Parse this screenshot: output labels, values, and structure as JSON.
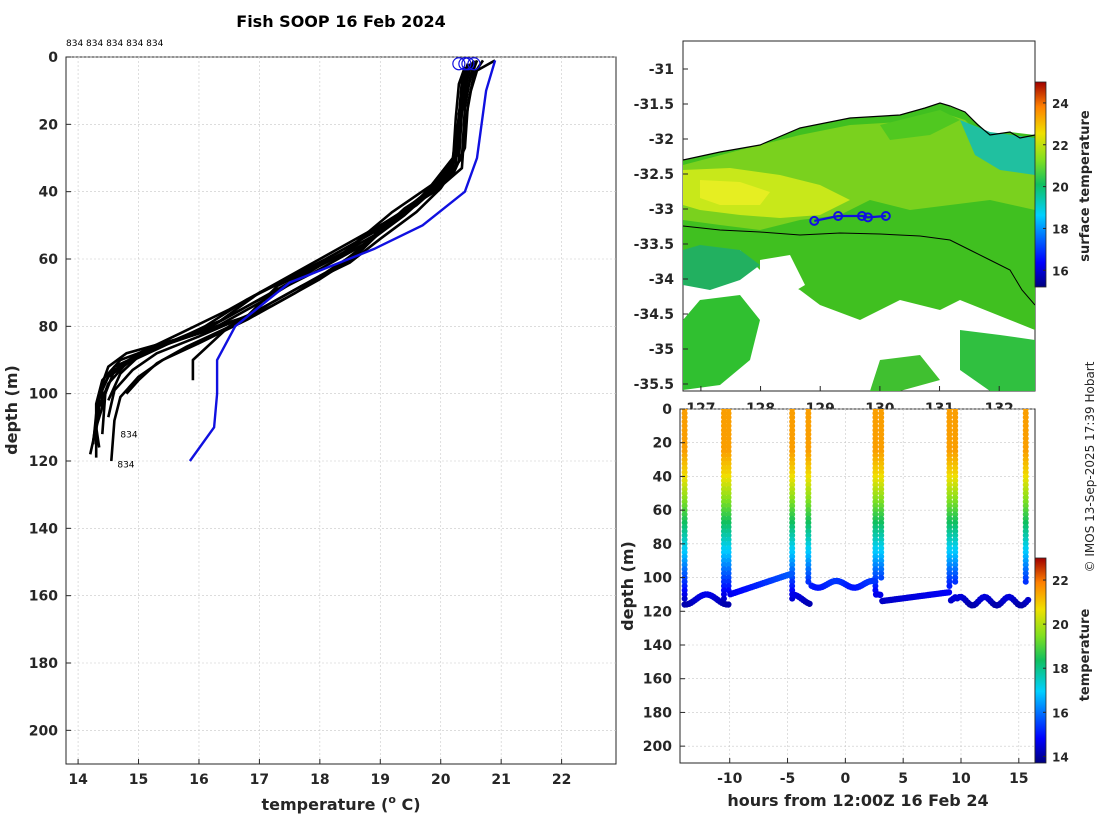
{
  "title": "Fish SOOP 16 Feb 2024",
  "credit": "© IMOS 13-Sep-2025 17:39 Hobart",
  "colors": {
    "profile": "#000000",
    "highlight": "#1010e0",
    "map_coast": "#000000",
    "map_bg": "#ffffff"
  },
  "chart_data": [
    {
      "id": "profiles",
      "type": "line",
      "xlabel": "temperature (o C)",
      "xlabel_main": "temperature (",
      "xlabel_sup": "o",
      "xlabel_tail": " C)",
      "ylabel": "depth (m)",
      "xlim": [
        13.8,
        22.9
      ],
      "ylim": [
        210,
        0
      ],
      "xticks": [
        "14",
        "15",
        "16",
        "17",
        "18",
        "19",
        "20",
        "21",
        "22"
      ],
      "yticks": [
        "0",
        "20",
        "40",
        "60",
        "80",
        "100",
        "120",
        "140",
        "160",
        "180",
        "200"
      ],
      "top_labels": "834 834 834 834 834",
      "end_labels": [
        {
          "text": "834",
          "temp": 14.7,
          "depth": 113
        },
        {
          "text": "834",
          "temp": 14.65,
          "depth": 122
        }
      ],
      "series": [
        {
          "name": "profile-1",
          "temps": [
            20.9,
            20.6,
            20.5,
            20.4,
            20.35,
            19.9,
            19.0,
            18.4,
            17.3,
            16.8,
            15.6,
            14.8,
            14.5,
            14.4,
            14.4,
            14.3,
            14.35
          ],
          "depths": [
            1,
            4,
            10,
            20,
            33,
            40,
            50,
            58,
            68,
            77,
            84,
            88,
            92,
            97,
            104,
            110,
            116
          ]
        },
        {
          "name": "profile-2",
          "temps": [
            20.5,
            20.45,
            20.35,
            20.3,
            20.1,
            19.6,
            18.9,
            18.1,
            17.0,
            16.3,
            15.5,
            14.9,
            14.5,
            14.35,
            14.3,
            14.25
          ],
          "depths": [
            2,
            6,
            16,
            28,
            36,
            44,
            52,
            60,
            70,
            79,
            85,
            90,
            95,
            101,
            108,
            114
          ]
        },
        {
          "name": "profile-3",
          "temps": [
            20.6,
            20.5,
            20.4,
            20.35,
            20.0,
            19.4,
            18.8,
            18.0,
            17.1,
            16.2,
            15.3,
            14.7,
            14.4,
            14.3,
            14.3,
            14.2
          ],
          "depths": [
            1,
            5,
            15,
            30,
            38,
            45,
            55,
            62,
            72,
            81,
            86,
            90,
            96,
            103,
            110,
            118
          ]
        },
        {
          "name": "profile-4",
          "temps": [
            20.4,
            20.3,
            20.25,
            20.2,
            19.8,
            19.3,
            18.7,
            17.9,
            16.9,
            16.0,
            15.2,
            14.6,
            14.4,
            14.3,
            14.25
          ],
          "depths": [
            3,
            8,
            18,
            32,
            40,
            47,
            56,
            64,
            73,
            82,
            87,
            92,
            98,
            106,
            115
          ]
        },
        {
          "name": "profile-5",
          "temps": [
            20.7,
            20.55,
            20.45,
            20.4,
            20.2,
            19.7,
            19.1,
            18.3,
            17.4,
            16.5,
            15.7,
            15.0,
            14.6,
            14.45,
            14.4
          ],
          "depths": [
            1,
            5,
            14,
            27,
            35,
            42,
            49,
            57,
            66,
            75,
            82,
            88,
            93,
            100,
            112
          ]
        },
        {
          "name": "profile-6",
          "temps": [
            20.5,
            20.4,
            20.3,
            20.25,
            19.9,
            19.5,
            18.9,
            18.2,
            17.3,
            16.4,
            15.6,
            15.0,
            14.7,
            14.5
          ],
          "depths": [
            2,
            7,
            17,
            29,
            37,
            45,
            53,
            60,
            69,
            78,
            84,
            89,
            94,
            102
          ]
        },
        {
          "name": "profile-7",
          "temps": [
            20.6,
            20.5,
            20.35,
            20.3,
            20.0,
            19.6,
            19.0,
            18.5,
            17.7,
            16.9,
            16.0,
            15.3,
            14.9,
            14.6,
            14.5
          ],
          "depths": [
            1,
            6,
            16,
            31,
            39,
            46,
            54,
            61,
            68,
            76,
            83,
            88,
            93,
            99,
            107
          ]
        },
        {
          "name": "profile-8",
          "temps": [
            20.45,
            20.35,
            20.3,
            20.2,
            19.85,
            19.2,
            18.6,
            17.8,
            16.8,
            16.1,
            15.4,
            14.8,
            14.5,
            14.35,
            14.3,
            14.3
          ],
          "depths": [
            2,
            7,
            18,
            30,
            38,
            46,
            55,
            63,
            72,
            80,
            86,
            91,
            97,
            104,
            111,
            119
          ]
        },
        {
          "name": "profile-9",
          "temps": [
            20.55,
            20.45,
            20.35,
            20.3,
            20.05,
            19.5,
            19.0,
            18.6,
            18.0,
            17.2,
            16.4,
            15.8,
            15.3,
            15.0,
            14.8
          ],
          "depths": [
            1,
            5,
            15,
            28,
            36,
            44,
            52,
            59,
            66,
            74,
            81,
            86,
            91,
            96,
            100
          ]
        },
        {
          "name": "profile-10",
          "temps": [
            20.5,
            20.4,
            20.3,
            20.25,
            19.9,
            19.4,
            18.8,
            18.3,
            17.6,
            16.8,
            16.0,
            15.4,
            15.0,
            14.7,
            14.6,
            14.55
          ],
          "depths": [
            2,
            6,
            17,
            32,
            39,
            47,
            55,
            62,
            70,
            78,
            85,
            90,
            95,
            101,
            108,
            120
          ]
        },
        {
          "name": "profile-11",
          "temps": [
            20.4,
            20.35,
            20.3,
            20.25,
            19.95,
            19.6,
            19.05,
            18.7,
            18.1,
            17.3,
            16.5,
            15.9,
            15.9
          ],
          "depths": [
            3,
            8,
            18,
            30,
            37,
            43,
            50,
            57,
            64,
            72,
            80,
            90,
            96
          ]
        }
      ],
      "highlight": {
        "name": "highlight-profile",
        "temps": [
          20.9,
          20.75,
          20.6,
          20.4,
          19.7,
          18.9,
          17.5,
          16.6,
          16.3,
          16.3,
          16.25,
          15.85
        ],
        "depths": [
          1,
          10,
          30,
          40,
          50,
          57,
          67,
          80,
          90,
          100,
          110,
          120
        ]
      },
      "surface_markers": [
        20.3,
        20.4,
        20.45,
        20.55
      ]
    },
    {
      "id": "map",
      "type": "heatmap",
      "xlim": [
        126.7,
        132.6
      ],
      "ylim": [
        -35.6,
        -30.6
      ],
      "xticks": [
        "127",
        "128",
        "129",
        "130",
        "131",
        "132"
      ],
      "yticks": [
        "-31",
        "-31.5",
        "-32",
        "-32.5",
        "-33",
        "-33.5",
        "-34",
        "-34.5",
        "-35",
        "-35.5"
      ],
      "track": {
        "lon": [
          128.9,
          129.3,
          129.7,
          129.8,
          130.1
        ],
        "lat": [
          -33.17,
          -33.1,
          -33.1,
          -33.12,
          -33.1
        ]
      },
      "colorbar": {
        "label": "surface temperature",
        "range": [
          15.2,
          25.0
        ],
        "ticks": [
          "16",
          "18",
          "20",
          "22",
          "24"
        ]
      }
    },
    {
      "id": "timeseries",
      "type": "scatter",
      "xlabel": "hours from 12:00Z 16 Feb 24",
      "ylabel": "depth (m)",
      "xlim": [
        -14.3,
        16.4
      ],
      "ylim": [
        210,
        0
      ],
      "xticks": [
        "-10",
        "-5",
        "0",
        "5",
        "10",
        "15"
      ],
      "yticks": [
        "0",
        "20",
        "40",
        "60",
        "80",
        "100",
        "120",
        "140",
        "160",
        "180",
        "200"
      ],
      "casts": [
        -13.9,
        -10.5,
        -10.1,
        -4.6,
        -3.2,
        2.6,
        3.1,
        9.0,
        9.5,
        15.6
      ],
      "colorbar": {
        "label": "temperature",
        "range": [
          13.7,
          23.0
        ],
        "ticks": [
          "14",
          "16",
          "18",
          "20",
          "22"
        ]
      }
    }
  ]
}
